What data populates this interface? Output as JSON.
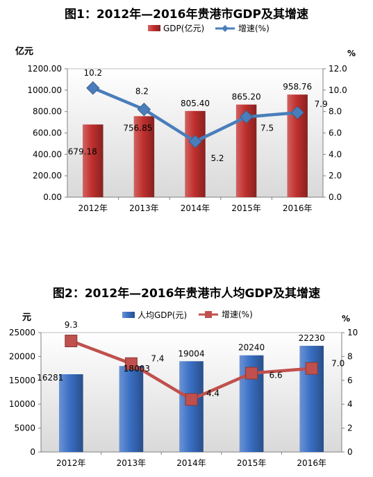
{
  "chart_data": [
    {
      "type": "bar+line",
      "title": "图1：2012年—2016年贵港市GDP及其增速",
      "categories": [
        "2012年",
        "2013年",
        "2014年",
        "2015年",
        "2016年"
      ],
      "series": [
        {
          "name": "GDP(亿元)",
          "type": "bar",
          "axis": "left",
          "color": "#c0302e",
          "values": [
            679.18,
            756.85,
            805.4,
            865.2,
            958.76
          ],
          "labels": [
            "679.18",
            "756.85",
            "805.40",
            "865.20",
            "958.76"
          ]
        },
        {
          "name": "增速(%)",
          "type": "line",
          "axis": "right",
          "color": "#4a7ebb",
          "values": [
            10.2,
            8.2,
            5.2,
            7.5,
            7.9
          ],
          "labels": [
            "10.2",
            "8.2",
            "5.2",
            "7.5",
            "7.9"
          ]
        }
      ],
      "y_left": {
        "unit": "亿元",
        "min": 0,
        "max": 1200,
        "ticks": [
          "0.00",
          "200.00",
          "400.00",
          "600.00",
          "800.00",
          "1000.00",
          "1200.00"
        ]
      },
      "y_right": {
        "unit": "%",
        "min": 0,
        "max": 12,
        "ticks": [
          "0.0",
          "2.0",
          "4.0",
          "6.0",
          "8.0",
          "10.0",
          "12.0"
        ]
      },
      "grid": false,
      "legend": "top"
    },
    {
      "type": "bar+line",
      "title": "图2：2012年—2016年贵港市人均GDP及其增速",
      "categories": [
        "2012年",
        "2013年",
        "2014年",
        "2015年",
        "2016年"
      ],
      "series": [
        {
          "name": "人均GDP(元)",
          "type": "bar",
          "axis": "left",
          "color": "#3a6fc4",
          "values": [
            16281,
            18003,
            19004,
            20240,
            22230
          ],
          "labels": [
            "16281",
            "18003",
            "19004",
            "20240",
            "22230"
          ]
        },
        {
          "name": "增速(%)",
          "type": "line",
          "axis": "right",
          "color": "#c0504d",
          "values": [
            9.3,
            7.4,
            4.4,
            6.6,
            7.0
          ],
          "labels": [
            "9.3",
            "7.4",
            "4.4",
            "6.6",
            "7.0"
          ]
        }
      ],
      "y_left": {
        "unit": "元",
        "min": 0,
        "max": 25000,
        "ticks": [
          "0",
          "5000",
          "10000",
          "15000",
          "20000",
          "25000"
        ]
      },
      "y_right": {
        "unit": "%",
        "min": 0,
        "max": 10,
        "ticks": [
          "0",
          "2",
          "4",
          "6",
          "8",
          "10"
        ]
      },
      "grid": false,
      "legend": "top"
    }
  ]
}
